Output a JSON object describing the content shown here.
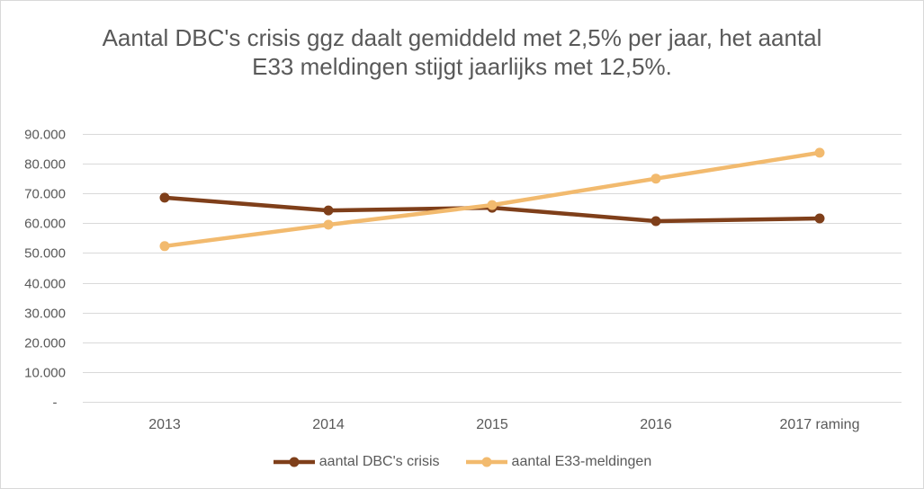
{
  "chart_data": {
    "type": "line",
    "title": "Aantal DBC's crisis ggz daalt gemiddeld met 2,5% per jaar, het aantal E33 meldingen stijgt jaarlijks met 12,5%.",
    "categories": [
      "2013",
      "2014",
      "2015",
      "2016",
      "2017 raming"
    ],
    "series": [
      {
        "name": "aantal DBC's crisis",
        "color": "#7F3F1A",
        "values": [
          68600,
          64300,
          65200,
          60700,
          61600
        ]
      },
      {
        "name": "aantal E33-meldingen",
        "color": "#F2BA6E",
        "values": [
          52300,
          59500,
          66100,
          75000,
          83700
        ]
      }
    ],
    "ylim": [
      0,
      90000
    ],
    "yticks": [
      0,
      10000,
      20000,
      30000,
      40000,
      50000,
      60000,
      70000,
      80000,
      90000
    ],
    "ytick_labels": [
      "-",
      "10.000",
      "20.000",
      "30.000",
      "40.000",
      "50.000",
      "60.000",
      "70.000",
      "80.000",
      "90.000"
    ],
    "grid": "horizontal",
    "markers": "circle",
    "legend_position": "bottom"
  },
  "colors": {
    "text": "#595959",
    "gridline": "#D9D9D9",
    "border": "#D9D9D9"
  }
}
